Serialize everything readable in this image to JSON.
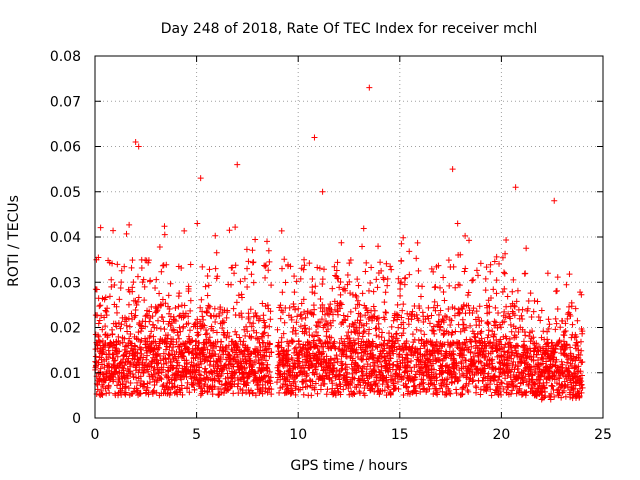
{
  "chart_data": {
    "type": "scatter",
    "title": "Day 248 of 2018, Rate Of TEC Index for receiver mchl",
    "xlabel": "GPS time / hours",
    "ylabel": "ROTI / TECUs",
    "xlim": [
      0,
      25
    ],
    "ylim": [
      0,
      0.08
    ],
    "xticks": [
      0,
      5,
      10,
      15,
      20,
      25
    ],
    "xtick_labels": [
      "0",
      "5",
      "10",
      "15",
      "20",
      "25"
    ],
    "yticks": [
      0,
      0.01,
      0.02,
      0.03,
      0.04,
      0.05,
      0.06,
      0.07,
      0.08
    ],
    "ytick_labels": [
      "0",
      "0.01",
      "0.02",
      "0.03",
      "0.04",
      "0.05",
      "0.06",
      "0.07",
      "0.08"
    ],
    "grid": true,
    "marker": "plus",
    "color": "#ff0000",
    "gap_hours": [
      8.7,
      8.95
    ],
    "series": [
      {
        "name": "ROTI",
        "notable_points": [
          {
            "x": 2.0,
            "y": 0.061
          },
          {
            "x": 2.15,
            "y": 0.06
          },
          {
            "x": 5.2,
            "y": 0.053
          },
          {
            "x": 7.0,
            "y": 0.056
          },
          {
            "x": 10.8,
            "y": 0.062
          },
          {
            "x": 11.2,
            "y": 0.05
          },
          {
            "x": 13.5,
            "y": 0.073
          },
          {
            "x": 17.6,
            "y": 0.055
          },
          {
            "x": 20.7,
            "y": 0.051
          },
          {
            "x": 22.6,
            "y": 0.048
          }
        ]
      }
    ]
  }
}
